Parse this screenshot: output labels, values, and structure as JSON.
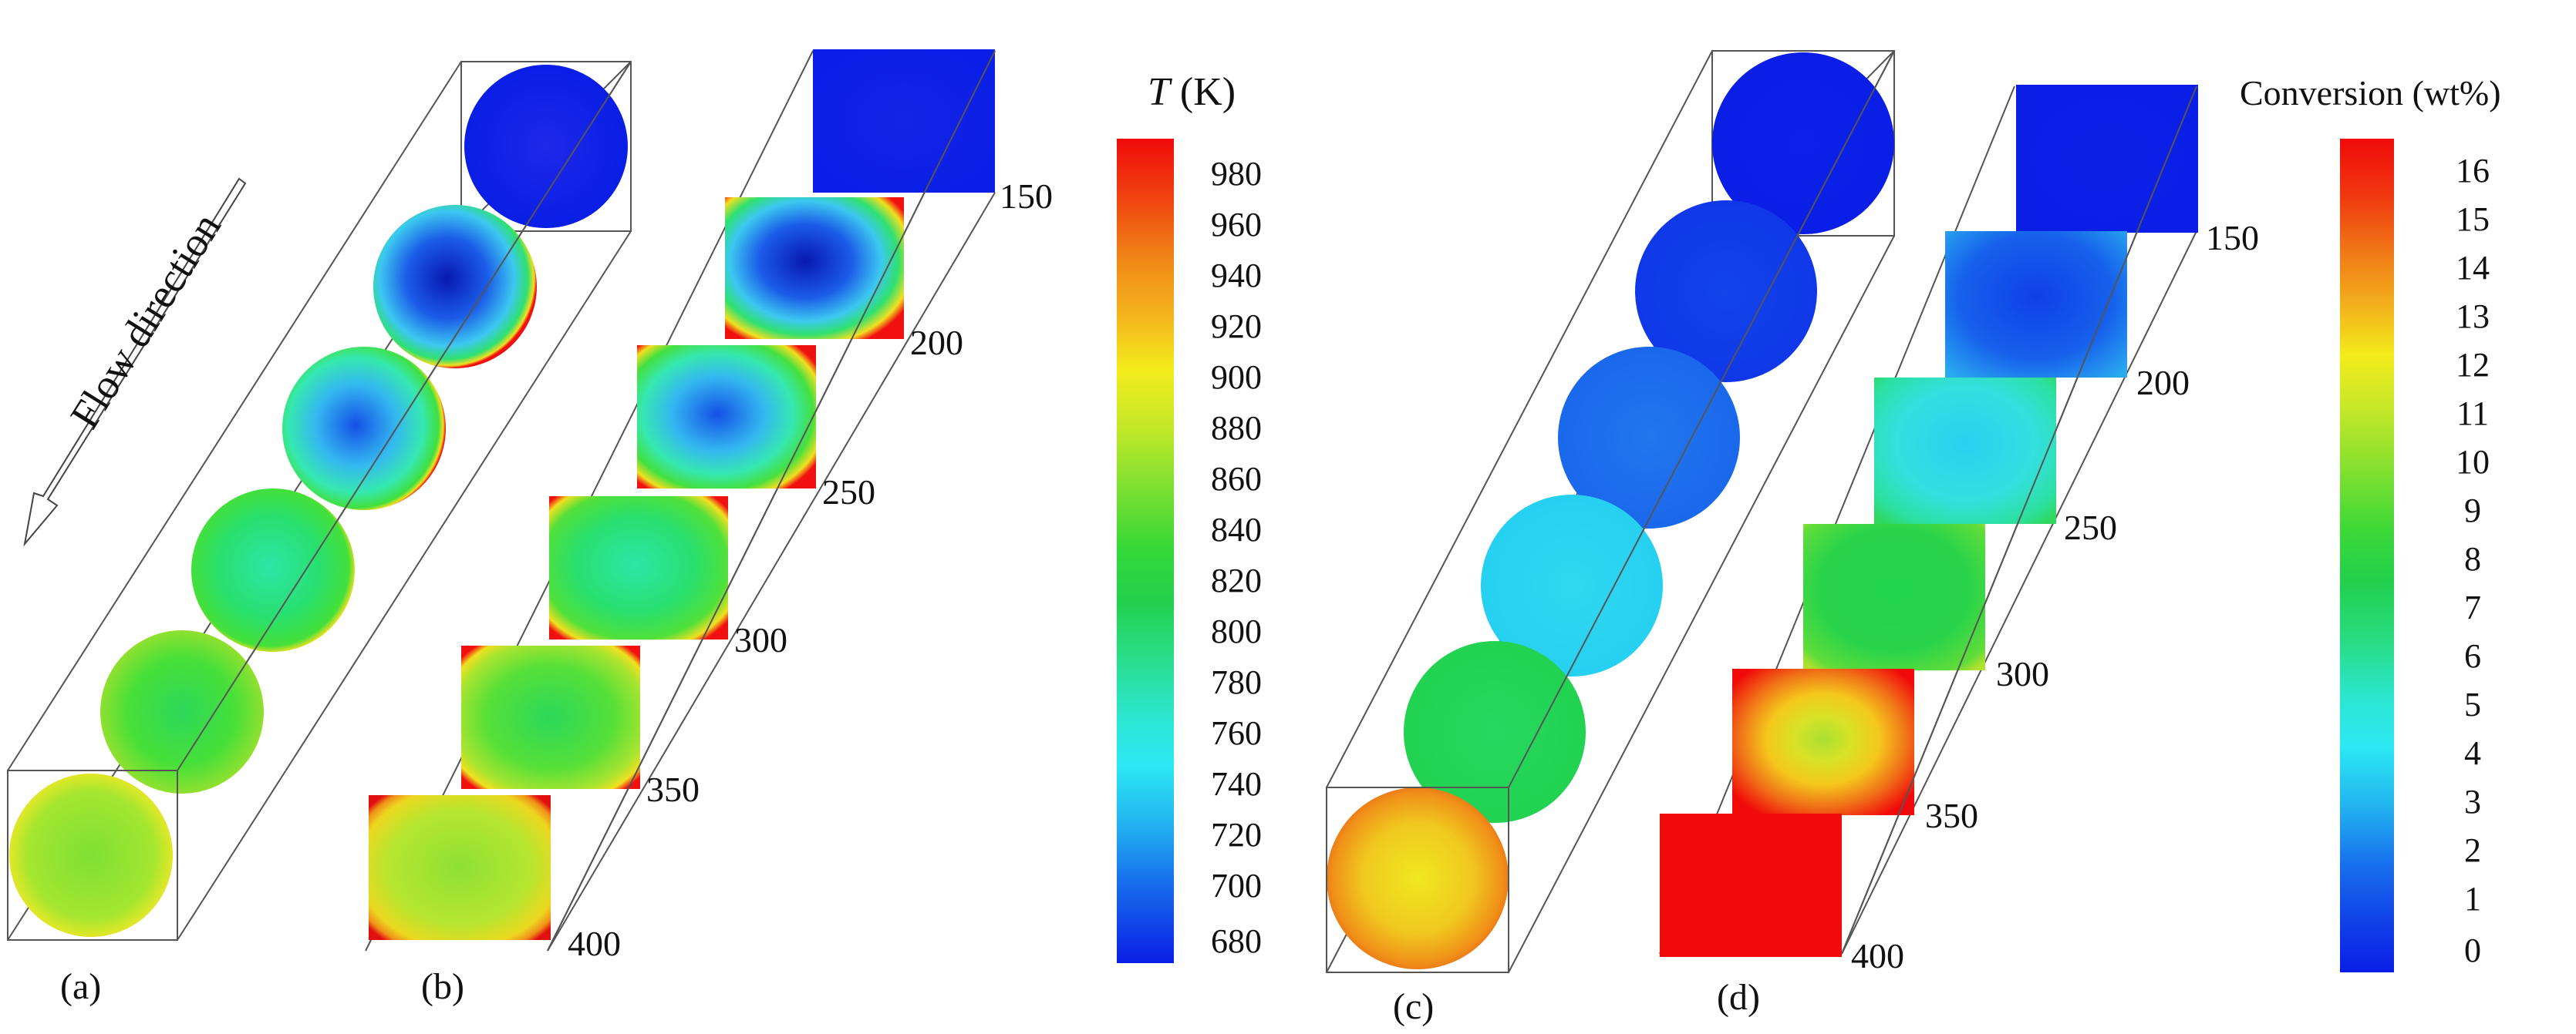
{
  "flow_label": "Flow direction",
  "panel_labels": [
    "(a)",
    "(b)",
    "(c)",
    "(d)"
  ],
  "positions_b": [
    "150",
    "200",
    "250",
    "300",
    "350",
    "400"
  ],
  "positions_d": [
    "150",
    "200",
    "250",
    "300",
    "350",
    "400"
  ],
  "temp_legend": {
    "title_symbol": "T",
    "title_unit": " (K)",
    "ticks": [
      "980",
      "960",
      "940",
      "920",
      "900",
      "880",
      "860",
      "840",
      "820",
      "800",
      "780",
      "760",
      "740",
      "720",
      "700",
      "680"
    ]
  },
  "conv_legend": {
    "title": "Conversion (wt%)",
    "ticks": [
      "16",
      "15",
      "14",
      "13",
      "12",
      "11",
      "10",
      "9",
      "8",
      "7",
      "6",
      "5",
      "4",
      "3",
      "2",
      "1",
      "0"
    ]
  },
  "colors": {
    "cold": "#0a1ee6",
    "cool": "#1d7cf0",
    "cyan": "#2ce6ee",
    "green": "#22d84a",
    "yellowgreen": "#9ee630",
    "yellow": "#f4e81c",
    "orange": "#f4901a",
    "red": "#f00a0a"
  }
}
